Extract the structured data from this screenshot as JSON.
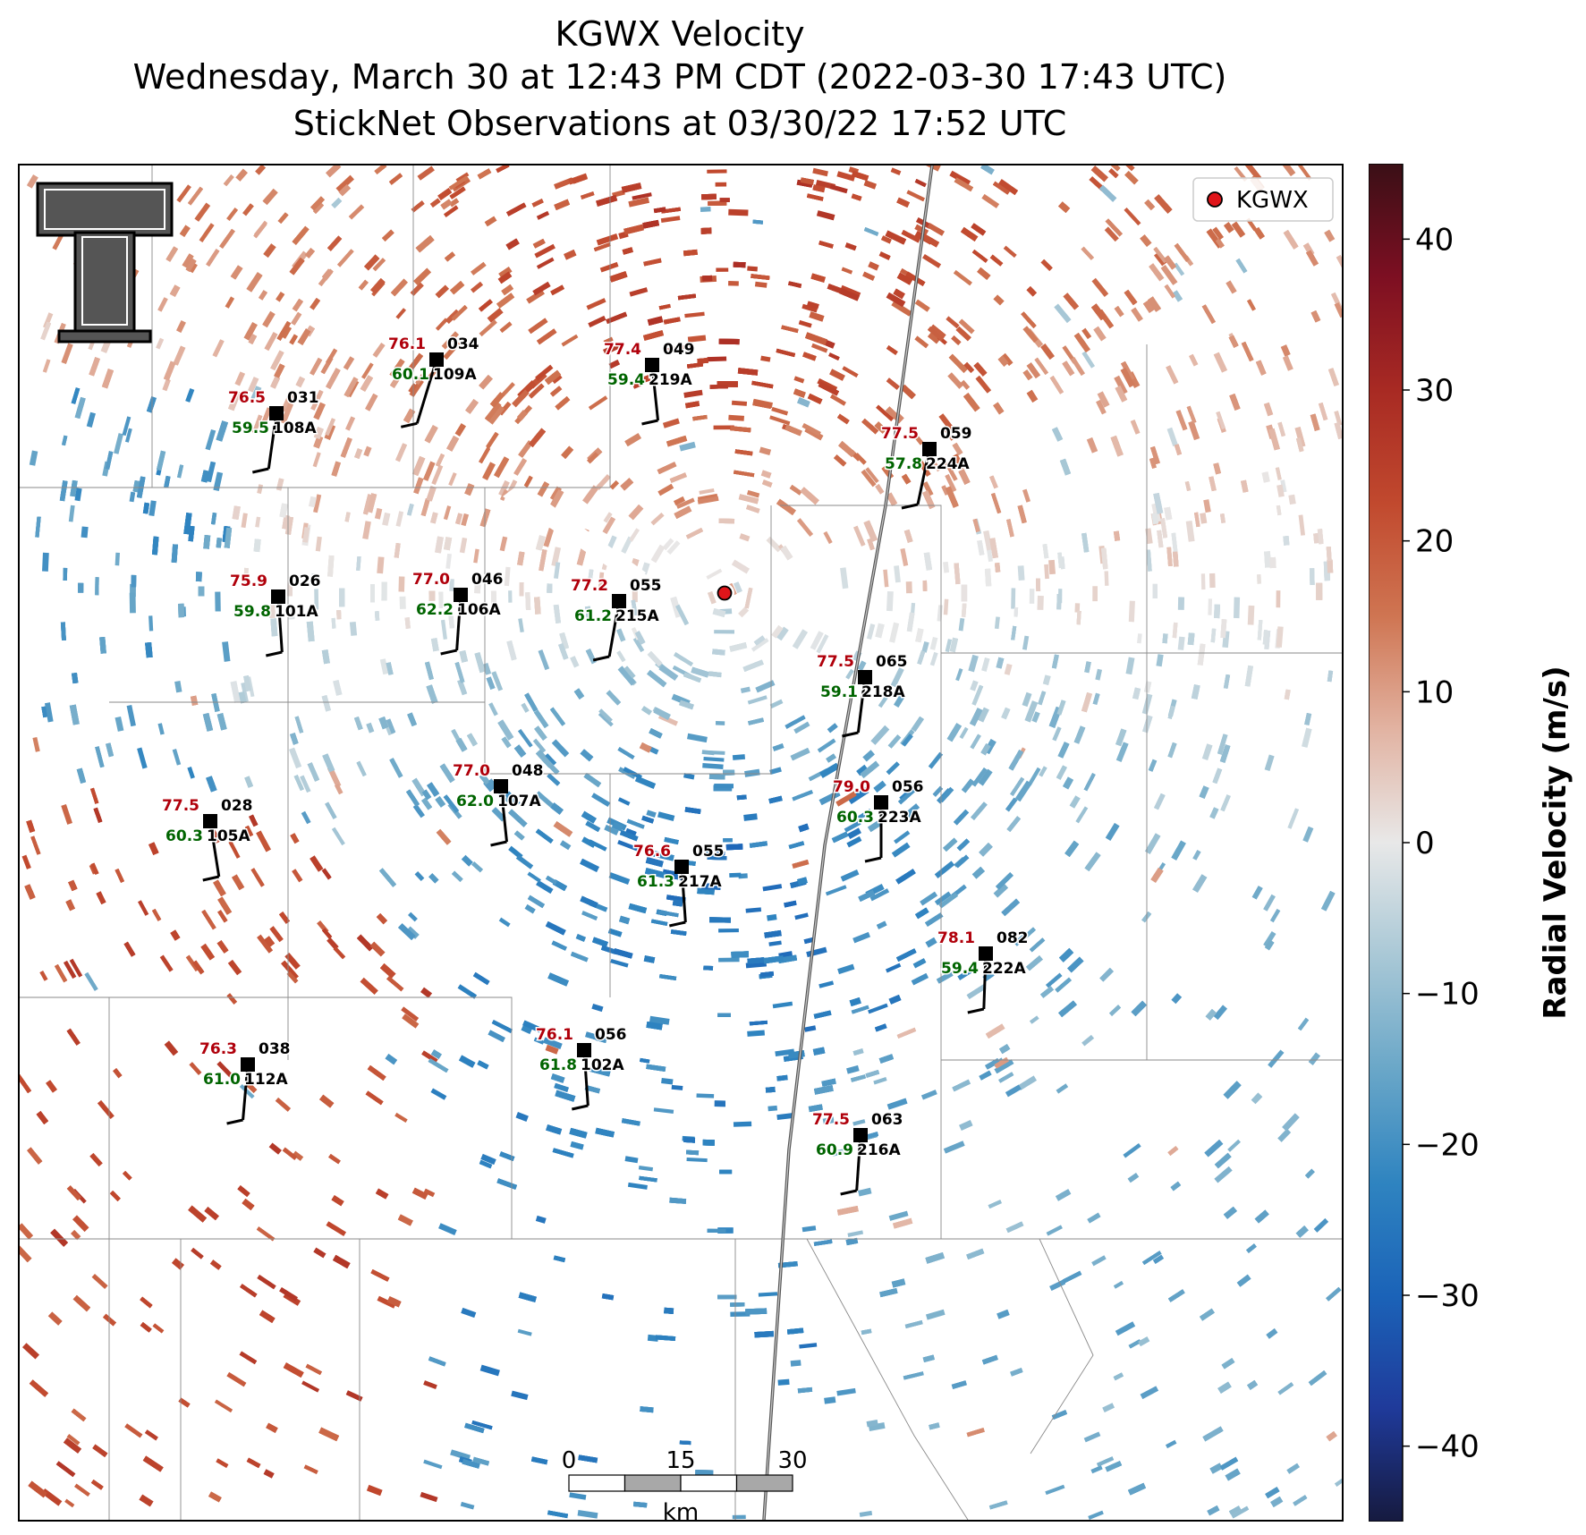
{
  "title": {
    "line1": "KGWX Velocity",
    "line2": "Wednesday, March 30 at 12:43 PM CDT (2022-03-30 17:43 UTC)",
    "line3": "StickNet Observations at 03/30/22 17:52 UTC"
  },
  "legend": {
    "label": "KGWX",
    "marker_color": "#e0151a"
  },
  "colorbar": {
    "label": "Radial Velocity (m/s)",
    "ticks": [
      "40",
      "30",
      "20",
      "10",
      "0",
      "−10",
      "−20",
      "−30",
      "−40"
    ],
    "range": [
      -45,
      45
    ],
    "colors": [
      "#161a3f",
      "#1f3a9a",
      "#1b63b8",
      "#2f84c0",
      "#6aa7c8",
      "#a9c8d6",
      "#e8e8e8",
      "#e2b3a2",
      "#cf7552",
      "#c1492e",
      "#a82a23",
      "#7d0f22",
      "#3a0f16"
    ]
  },
  "scale_bar": {
    "labels": [
      "0",
      "15",
      "30"
    ],
    "unit": "km"
  },
  "stations": [
    {
      "temp": "76.1",
      "dew": "60.1",
      "dir": "034",
      "id": "109A"
    },
    {
      "temp": "77.4",
      "dew": "59.4",
      "dir": "049",
      "id": "219A"
    },
    {
      "temp": "76.5",
      "dew": "59.5",
      "dir": "031",
      "id": "108A"
    },
    {
      "temp": "77.5",
      "dew": "57.8",
      "dir": "059",
      "id": "224A"
    },
    {
      "temp": "75.9",
      "dew": "59.8",
      "dir": "026",
      "id": "101A"
    },
    {
      "temp": "77.0",
      "dew": "62.2",
      "dir": "046",
      "id": "106A"
    },
    {
      "temp": "77.2",
      "dew": "61.2",
      "dir": "055",
      "id": "215A"
    },
    {
      "temp": "77.5",
      "dew": "59.1",
      "dir": "065",
      "id": "218A"
    },
    {
      "temp": "77.0",
      "dew": "62.0",
      "dir": "048",
      "id": "107A"
    },
    {
      "temp": "79.0",
      "dew": "60.3",
      "dir": "056",
      "id": "223A"
    },
    {
      "temp": "77.5",
      "dew": "60.3",
      "dir": "028",
      "id": "105A"
    },
    {
      "temp": "76.6",
      "dew": "61.3",
      "dir": "055",
      "id": "217A"
    },
    {
      "temp": "78.1",
      "dew": "59.4",
      "dir": "082",
      "id": "222A"
    },
    {
      "temp": "76.1",
      "dew": "61.8",
      "dir": "056",
      "id": "102A"
    },
    {
      "temp": "76.3",
      "dew": "61.0",
      "dir": "038",
      "id": "112A"
    },
    {
      "temp": "77.5",
      "dew": "60.9",
      "dir": "063",
      "id": "216A"
    }
  ],
  "temp_color": "#b0000b",
  "dew_color": "#006400",
  "logo": {
    "letters": "TT"
  }
}
